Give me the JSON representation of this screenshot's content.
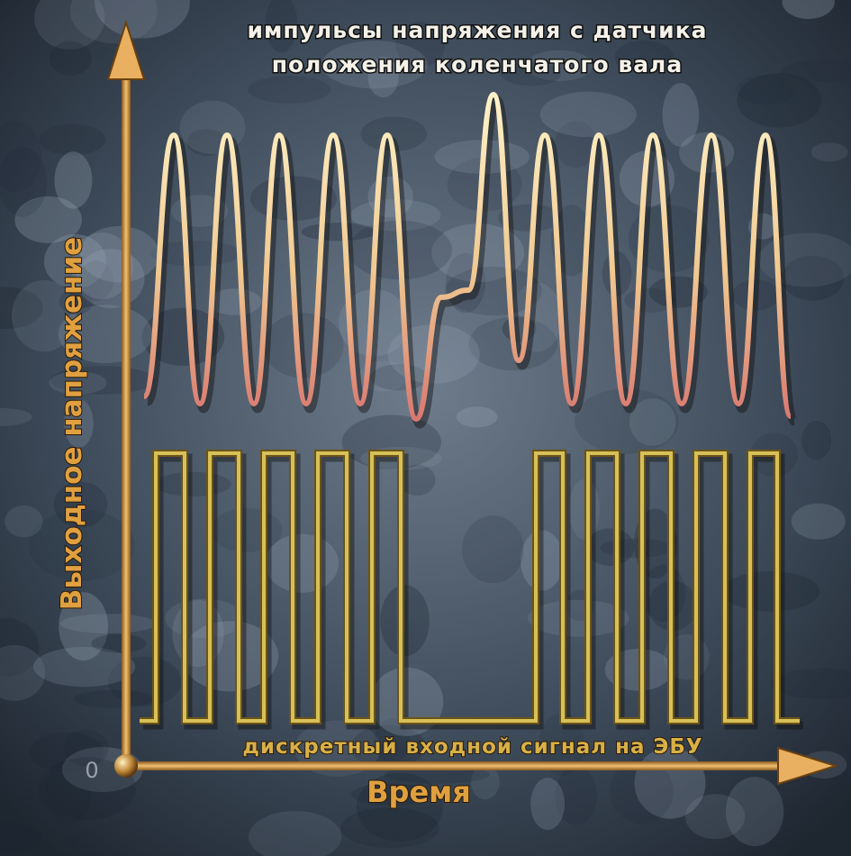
{
  "header": {
    "lines": [
      "импульсы напряжения с датчика",
      "положения коленчатого вала"
    ]
  },
  "axes": {
    "y_label": "Выходное напряжение",
    "x_label": "Время",
    "origin": "0"
  },
  "caption": "дискретный входной сигнал на ЭБУ"
}
